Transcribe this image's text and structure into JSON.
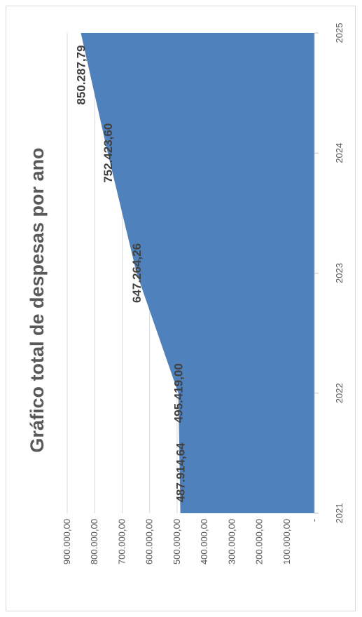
{
  "chart_data": {
    "type": "area",
    "title": "Gráfico total de despesas por ano",
    "xlabel": "",
    "ylabel": "",
    "categories": [
      "2021",
      "2022",
      "2023",
      "2024",
      "2025"
    ],
    "values": [
      487914.64,
      495419.0,
      647264.26,
      752423.6,
      850287.79
    ],
    "data_labels": [
      "487.914,64",
      "495.419,00",
      "647.264,26",
      "752.423,60",
      "850.287,79"
    ],
    "yticks": [
      0,
      100000,
      200000,
      300000,
      400000,
      500000,
      600000,
      700000,
      800000,
      900000
    ],
    "ytick_labels": [
      "-",
      "100.000,00",
      "200.000,00",
      "300.000,00",
      "400.000,00",
      "500.000,00",
      "600.000,00",
      "700.000,00",
      "800.000,00",
      "900.000,00"
    ],
    "ylim": [
      0,
      900000
    ],
    "grid": true,
    "legend": "none",
    "colors": {
      "area": "#4f81bd",
      "grid": "#d9d9d9",
      "axis": "#bfbfbf",
      "text": "#595959",
      "labels": "#404040"
    }
  }
}
